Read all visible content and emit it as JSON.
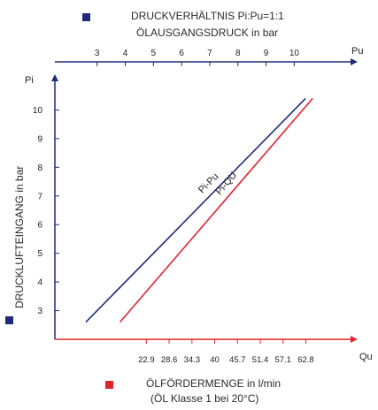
{
  "legend": {
    "blue_label": "DRUCKVERHÄLTNIS Pi:Pu=1:1",
    "blue_color": "#1f2a7a",
    "red_color": "#e0242f"
  },
  "chart_data": {
    "type": "line",
    "top_axis": {
      "label": "ÖLAUSGANGSDRUCK in bar",
      "end_label": "Pu",
      "ticks": [
        "3",
        "4",
        "5",
        "6",
        "7",
        "8",
        "9",
        "10"
      ],
      "range": [
        1.5,
        12
      ]
    },
    "left_axis": {
      "label": "DRUCKLUFTEINGANG in bar",
      "end_label": "Pi",
      "ticks": [
        "3",
        "4",
        "5",
        "6",
        "7",
        "8",
        "9",
        "10"
      ],
      "range": [
        2,
        11
      ]
    },
    "bottom_axis": {
      "label": "ÖLFÖRDERMENGE in l/min",
      "sublabel": "(ÖL Klasse 1 bei 20°C)",
      "end_label": "Qu",
      "ticks": [
        "22.9",
        "28.6",
        "34.3",
        "40",
        "45.7",
        "51.4",
        "57.1",
        "62.8"
      ],
      "range": [
        0,
        74
      ]
    },
    "series": [
      {
        "name": "Pi-Pu",
        "color": "#1f2a7a",
        "axis": "top",
        "points": [
          [
            2.6,
            2.6
          ],
          [
            10.4,
            10.4
          ]
        ]
      },
      {
        "name": "Pi-QU",
        "color": "#e0242f",
        "axis": "bottom",
        "points": [
          [
            16.3,
            2.6
          ],
          [
            64.5,
            10.4
          ]
        ]
      }
    ],
    "grid": false
  }
}
